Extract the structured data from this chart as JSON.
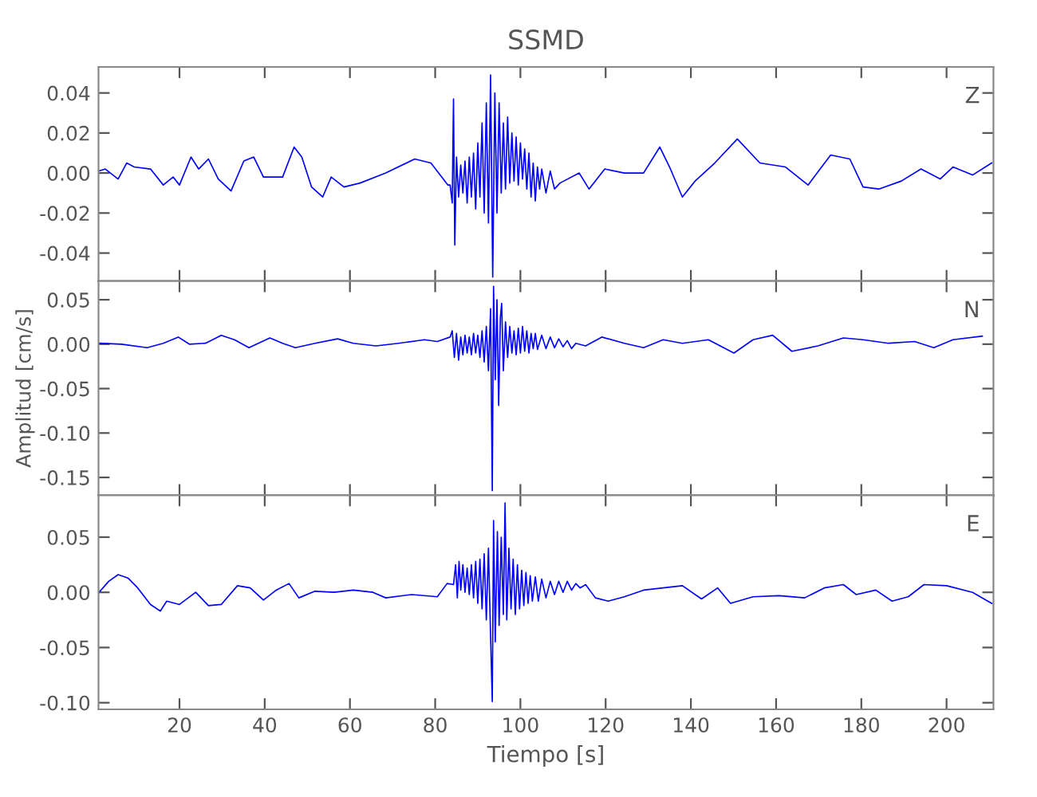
{
  "chart_data": [
    {
      "type": "line",
      "title": "SSMD",
      "annotations": [
        "Z"
      ],
      "xlim": [
        1,
        211
      ],
      "xticks": [
        20,
        40,
        60,
        80,
        100,
        120,
        140,
        160,
        180,
        200
      ],
      "ylim": [
        -0.054,
        0.053
      ],
      "yticks": [
        {
          "value": -0.04,
          "label": "-0.04"
        },
        {
          "value": -0.02,
          "label": "-0.02"
        },
        {
          "value": 0.0,
          "label": "0.00"
        },
        {
          "value": 0.02,
          "label": "0.02"
        },
        {
          "value": 0.04,
          "label": "0.04"
        }
      ],
      "tick_labels": "y",
      "grid": false,
      "legend": false,
      "series": [
        {
          "color": "#0000ff",
          "x": [
            1.1,
            2.6,
            5.6,
            7.6,
            9.4,
            13.2,
            16.2,
            18.5,
            20,
            22.7,
            24.5,
            26.8,
            29.1,
            32.1,
            35.1,
            37.4,
            39.7,
            44.2,
            46.9,
            48.7,
            51.0,
            53.6,
            55.6,
            58.6,
            62.4,
            68.4,
            75.2,
            79.0,
            83.0,
            83.5,
            84.0,
            84.3,
            84.6,
            85.0,
            85.5,
            86.0,
            86.5,
            87.0,
            87.5,
            88.0,
            88.5,
            89.0,
            89.5,
            90.0,
            90.5,
            91.0,
            91.5,
            92.0,
            92.5,
            93.0,
            93.5,
            94.0,
            94.5,
            95.0,
            95.5,
            96.0,
            96.5,
            97.0,
            97.5,
            98.0,
            98.5,
            99.0,
            99.5,
            100.0,
            100.5,
            101.0,
            101.5,
            102.0,
            102.5,
            103.0,
            103.5,
            104.0,
            104.5,
            105.0,
            106.0,
            107.0,
            108.0,
            109.3,
            113.8,
            116.1,
            119.8,
            124.4,
            128.9,
            132.7,
            135.0,
            138.0,
            141.0,
            145.6,
            150.9,
            156.2,
            162.2,
            167.5,
            172.8,
            177.3,
            180.4,
            184.1,
            189.4,
            194.0,
            198.5,
            201.5,
            206.1,
            210.6
          ],
          "values": [
            0.001,
            0.002,
            -0.003,
            0.005,
            0.003,
            0.002,
            -0.006,
            -0.002,
            -0.006,
            0.008,
            0.002,
            0.007,
            -0.003,
            -0.009,
            0.006,
            0.008,
            -0.002,
            -0.002,
            0.013,
            0.008,
            -0.007,
            -0.012,
            -0.002,
            -0.007,
            -0.005,
            0.0,
            0.007,
            0.005,
            -0.006,
            -0.006,
            -0.015,
            0.037,
            -0.036,
            0.008,
            -0.012,
            0.004,
            -0.01,
            0.006,
            -0.015,
            0.008,
            -0.012,
            0.01,
            -0.018,
            0.015,
            -0.012,
            0.025,
            -0.02,
            0.035,
            -0.025,
            0.049,
            -0.052,
            0.04,
            -0.02,
            0.035,
            -0.01,
            0.025,
            -0.008,
            0.028,
            -0.005,
            0.02,
            -0.004,
            0.018,
            -0.006,
            0.015,
            -0.003,
            0.012,
            -0.008,
            0.01,
            -0.012,
            0.005,
            -0.014,
            0.003,
            -0.008,
            0.002,
            -0.01,
            0.001,
            -0.008,
            -0.005,
            0.0,
            -0.008,
            0.002,
            0.0,
            0.0,
            0.013,
            0.003,
            -0.012,
            -0.004,
            0.005,
            0.017,
            0.005,
            0.003,
            -0.006,
            0.009,
            0.007,
            -0.007,
            -0.008,
            -0.004,
            0.002,
            -0.003,
            0.003,
            -0.001,
            0.005
          ]
        }
      ]
    },
    {
      "type": "line",
      "ylabel": "Amplitud [cm/s]",
      "annotations": [
        "N"
      ],
      "xlim": [
        1,
        211
      ],
      "xticks": [
        20,
        40,
        60,
        80,
        100,
        120,
        140,
        160,
        180,
        200
      ],
      "ylim": [
        -0.17,
        0.071
      ],
      "yticks": [
        {
          "value": -0.15,
          "label": "-0.15"
        },
        {
          "value": -0.1,
          "label": "-0.10"
        },
        {
          "value": -0.05,
          "label": "-0.05"
        },
        {
          "value": 0.0,
          "label": "0.00"
        },
        {
          "value": 0.05,
          "label": "0.05"
        }
      ],
      "tick_labels": "y",
      "grid": false,
      "legend": false,
      "series": [
        {
          "color": "#0000ff",
          "x": [
            1.1,
            6.4,
            12.4,
            16.2,
            19.7,
            22.3,
            26.1,
            29.8,
            32.9,
            36.3,
            41.2,
            44.2,
            47.2,
            51.8,
            57.1,
            60.8,
            66.1,
            71.4,
            77.5,
            80.5,
            83.5,
            84.0,
            84.5,
            85.0,
            85.5,
            86.0,
            86.5,
            87.0,
            87.5,
            88.0,
            88.5,
            89.0,
            89.5,
            90.0,
            90.5,
            91.0,
            91.5,
            92.0,
            92.5,
            93.0,
            93.4,
            93.7,
            94.1,
            94.5,
            94.9,
            95.3,
            95.6,
            96.0,
            96.5,
            97.0,
            97.5,
            98.0,
            98.5,
            99.0,
            99.5,
            100.0,
            100.5,
            101.0,
            101.5,
            102.0,
            102.5,
            103.0,
            103.5,
            104.0,
            105.0,
            106.0,
            107.0,
            108.0,
            109.0,
            110.0,
            111.0,
            112.0,
            113.0,
            115.3,
            119.1,
            124.4,
            128.9,
            133.5,
            138.0,
            144.1,
            150.1,
            154.6,
            159.2,
            163.7,
            169.8,
            175.8,
            180.4,
            186.4,
            192.5,
            197.0,
            201.5,
            208.4
          ],
          "values": [
            0.001,
            0.0,
            -0.004,
            0.001,
            0.008,
            0.0,
            0.001,
            0.01,
            0.005,
            -0.004,
            0.007,
            0.001,
            -0.004,
            0.001,
            0.006,
            0.001,
            -0.002,
            0.001,
            0.005,
            0.003,
            0.008,
            0.015,
            -0.015,
            0.012,
            -0.018,
            0.008,
            -0.012,
            0.01,
            -0.01,
            0.008,
            -0.012,
            0.012,
            -0.01,
            0.01,
            -0.015,
            0.015,
            -0.02,
            0.02,
            -0.03,
            0.04,
            -0.165,
            0.065,
            -0.04,
            0.05,
            -0.069,
            0.03,
            0.046,
            -0.03,
            0.025,
            -0.015,
            0.02,
            -0.01,
            0.015,
            -0.012,
            0.018,
            -0.01,
            0.02,
            -0.008,
            0.015,
            -0.01,
            0.012,
            -0.005,
            0.012,
            -0.006,
            0.01,
            -0.005,
            0.008,
            -0.004,
            0.006,
            -0.003,
            0.004,
            -0.005,
            0.001,
            -0.002,
            0.008,
            0.001,
            -0.004,
            0.005,
            0.001,
            0.005,
            -0.01,
            0.005,
            0.01,
            -0.008,
            -0.002,
            0.007,
            0.005,
            0.001,
            0.003,
            -0.004,
            0.005,
            0.009
          ]
        }
      ]
    },
    {
      "type": "line",
      "xlabel": "Tiempo [s]",
      "annotations": [
        "E"
      ],
      "xlim": [
        1,
        211
      ],
      "xticks": [
        20,
        40,
        60,
        80,
        100,
        120,
        140,
        160,
        180,
        200
      ],
      "ylim": [
        -0.106,
        0.088
      ],
      "yticks": [
        {
          "value": -0.1,
          "label": "-0.10"
        },
        {
          "value": -0.05,
          "label": "-0.05"
        },
        {
          "value": 0.0,
          "label": "0.00"
        },
        {
          "value": 0.05,
          "label": "0.05"
        }
      ],
      "grid": false,
      "legend": false,
      "series": [
        {
          "color": "#0000ff",
          "x": [
            1.1,
            3.4,
            5.6,
            7.9,
            10.2,
            13.2,
            15.5,
            17.0,
            20,
            23.8,
            26.8,
            29.8,
            33.6,
            36.6,
            39.7,
            42.7,
            45.7,
            48.0,
            51.8,
            56.3,
            60.8,
            65.4,
            68.4,
            74.5,
            80.5,
            82.8,
            84.3,
            84.8,
            85.2,
            85.6,
            86.0,
            86.5,
            87.0,
            87.5,
            88.0,
            88.5,
            89.0,
            89.5,
            90.0,
            90.5,
            91.0,
            91.5,
            92.0,
            92.5,
            93.0,
            93.4,
            93.7,
            94.1,
            94.6,
            95.0,
            95.5,
            96.0,
            96.4,
            96.8,
            97.3,
            97.8,
            98.3,
            98.8,
            99.3,
            99.8,
            100.3,
            100.8,
            101.3,
            101.8,
            102.3,
            102.8,
            103.5,
            104.2,
            105.0,
            106.0,
            107.0,
            108.0,
            109.0,
            110.0,
            111.0,
            112.0,
            113.0,
            114.0,
            115.3,
            117.6,
            120.6,
            124.4,
            128.9,
            133.5,
            138.0,
            142.5,
            146.3,
            149.3,
            154.6,
            160.7,
            166.7,
            171.3,
            175.8,
            178.8,
            183.4,
            187.2,
            191.0,
            194.7,
            200.0,
            206.1,
            210.6
          ],
          "values": [
            0.0,
            0.01,
            0.016,
            0.013,
            0.004,
            -0.011,
            -0.017,
            -0.008,
            -0.011,
            0.0,
            -0.012,
            -0.011,
            0.006,
            0.004,
            -0.007,
            0.002,
            0.008,
            -0.005,
            0.001,
            0.0,
            0.002,
            0.0,
            -0.005,
            -0.002,
            -0.004,
            0.008,
            0.007,
            0.025,
            -0.005,
            0.028,
            0.002,
            0.025,
            0.0,
            0.022,
            -0.002,
            0.025,
            -0.005,
            0.028,
            -0.01,
            0.03,
            -0.015,
            0.035,
            -0.025,
            0.04,
            -0.04,
            -0.099,
            0.065,
            -0.045,
            0.055,
            -0.03,
            0.05,
            -0.02,
            0.081,
            -0.025,
            0.04,
            -0.015,
            0.03,
            -0.02,
            0.025,
            -0.015,
            0.02,
            -0.012,
            0.018,
            -0.01,
            0.015,
            -0.008,
            0.014,
            -0.008,
            0.012,
            -0.005,
            0.01,
            -0.002,
            0.01,
            0.0,
            0.01,
            0.002,
            0.008,
            0.004,
            0.007,
            -0.005,
            -0.008,
            -0.004,
            0.002,
            0.004,
            0.006,
            -0.006,
            0.004,
            -0.01,
            -0.004,
            -0.003,
            -0.005,
            0.004,
            0.007,
            -0.002,
            0.002,
            -0.008,
            -0.004,
            0.007,
            0.006,
            0.0,
            -0.01
          ]
        }
      ]
    }
  ]
}
